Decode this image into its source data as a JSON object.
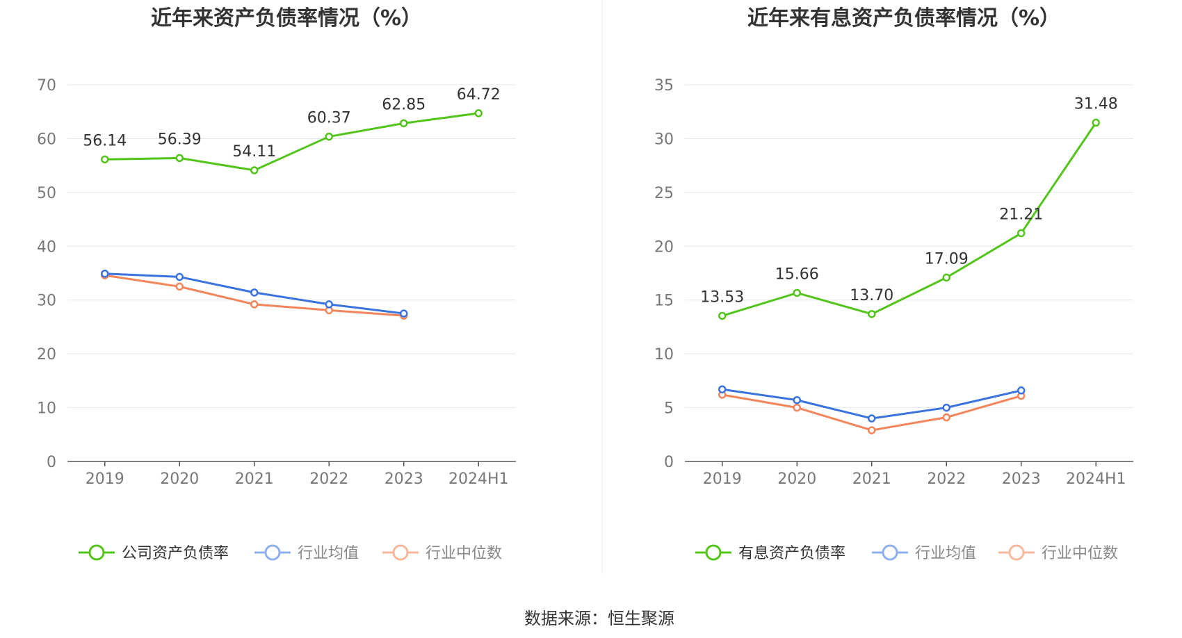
{
  "source": "数据来源：恒生聚源",
  "chart_data": [
    {
      "type": "line",
      "title": "近年来资产负债率情况（%）",
      "categories": [
        "2019",
        "2020",
        "2021",
        "2022",
        "2023",
        "2024H1"
      ],
      "ylim": [
        0,
        70
      ],
      "yticks": [
        0,
        10,
        20,
        30,
        40,
        50,
        60,
        70
      ],
      "grid": true,
      "legend_position": "bottom",
      "series": [
        {
          "name": "公司资产负债率",
          "color": "#52c41a",
          "values": [
            56.14,
            56.39,
            54.11,
            60.37,
            62.85,
            64.72
          ],
          "labels": [
            "56.14",
            "56.39",
            "54.11",
            "60.37",
            "62.85",
            "64.72"
          ],
          "show_labels": true
        },
        {
          "name": "行业均值",
          "color": "#3a73e0",
          "legend_color": "#8fb0ee",
          "values": [
            34.9,
            34.3,
            31.4,
            29.2,
            27.5,
            null
          ],
          "show_labels": false
        },
        {
          "name": "行业中位数",
          "color": "#f4845a",
          "legend_color": "#f8b89c",
          "values": [
            34.6,
            32.5,
            29.2,
            28.1,
            27.1,
            null
          ],
          "show_labels": false
        }
      ]
    },
    {
      "type": "line",
      "title": "近年来有息资产负债率情况（%）",
      "categories": [
        "2019",
        "2020",
        "2021",
        "2022",
        "2023",
        "2024H1"
      ],
      "ylim": [
        0,
        35
      ],
      "yticks": [
        0,
        5,
        10,
        15,
        20,
        25,
        30,
        35
      ],
      "grid": true,
      "legend_position": "bottom",
      "series": [
        {
          "name": "有息资产负债率",
          "color": "#52c41a",
          "values": [
            13.53,
            15.66,
            13.7,
            17.09,
            21.21,
            31.48
          ],
          "labels": [
            "13.53",
            "15.66",
            "13.70",
            "17.09",
            "21.21",
            "31.48"
          ],
          "show_labels": true
        },
        {
          "name": "行业均值",
          "color": "#3a73e0",
          "legend_color": "#8fb0ee",
          "values": [
            6.7,
            5.7,
            4.0,
            5.0,
            6.6,
            null
          ],
          "show_labels": false
        },
        {
          "name": "行业中位数",
          "color": "#f4845a",
          "legend_color": "#f8b89c",
          "values": [
            6.2,
            5.0,
            2.9,
            4.1,
            6.1,
            null
          ],
          "show_labels": false
        }
      ]
    }
  ]
}
